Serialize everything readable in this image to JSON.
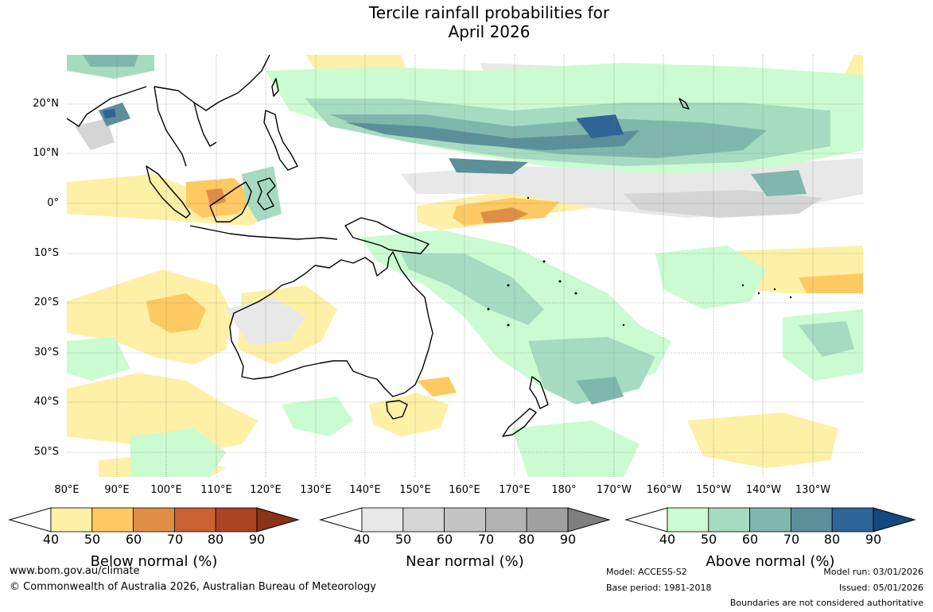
{
  "title_line1": "Tercile rainfall probabilities for",
  "title_line2": "April 2026",
  "lat_labels": [
    "20°N",
    "10°N",
    "0°",
    "10°S",
    "20°S",
    "30°S",
    "40°S",
    "50°S"
  ],
  "lon_labels": [
    "80°E",
    "90°E",
    "100°E",
    "110°E",
    "120°E",
    "130°E",
    "140°E",
    "150°E",
    "160°E",
    "170°E",
    "180°",
    "170°W",
    "160°W",
    "150°W",
    "140°W",
    "130°W"
  ],
  "colorbars": [
    {
      "title": "Below normal (%)",
      "ticks": [
        "40",
        "50",
        "60",
        "70",
        "80",
        "90"
      ],
      "colors": [
        "#fef0a6",
        "#fdc962",
        "#df8f45",
        "#c96130",
        "#aa4422",
        "#8b3317"
      ]
    },
    {
      "title": "Near normal (%)",
      "ticks": [
        "40",
        "50",
        "60",
        "70",
        "80",
        "90"
      ],
      "colors": [
        "#e8e8e8",
        "#d5d5d5",
        "#c4c4c4",
        "#b2b2b2",
        "#a0a0a0",
        "#7f7f7f"
      ]
    },
    {
      "title": "Above normal (%)",
      "ticks": [
        "40",
        "50",
        "60",
        "70",
        "80",
        "90"
      ],
      "colors": [
        "#cbfbd0",
        "#a6dbc2",
        "#80b7ac",
        "#5b8f9a",
        "#2e6496",
        "#14487f"
      ]
    }
  ],
  "footer": {
    "url": "www.bom.gov.au/climate",
    "copyright": "© Commonwealth of Australia 2026, Australian Bureau of Meteorology",
    "model": "Model: ACCESS-S2",
    "base_period": "Base period: 1981-2018",
    "model_run": "Model run: 03/01/2026",
    "issued": "Issued: 05/01/2026",
    "disclaimer": "Boundaries are not considered authoritative"
  }
}
